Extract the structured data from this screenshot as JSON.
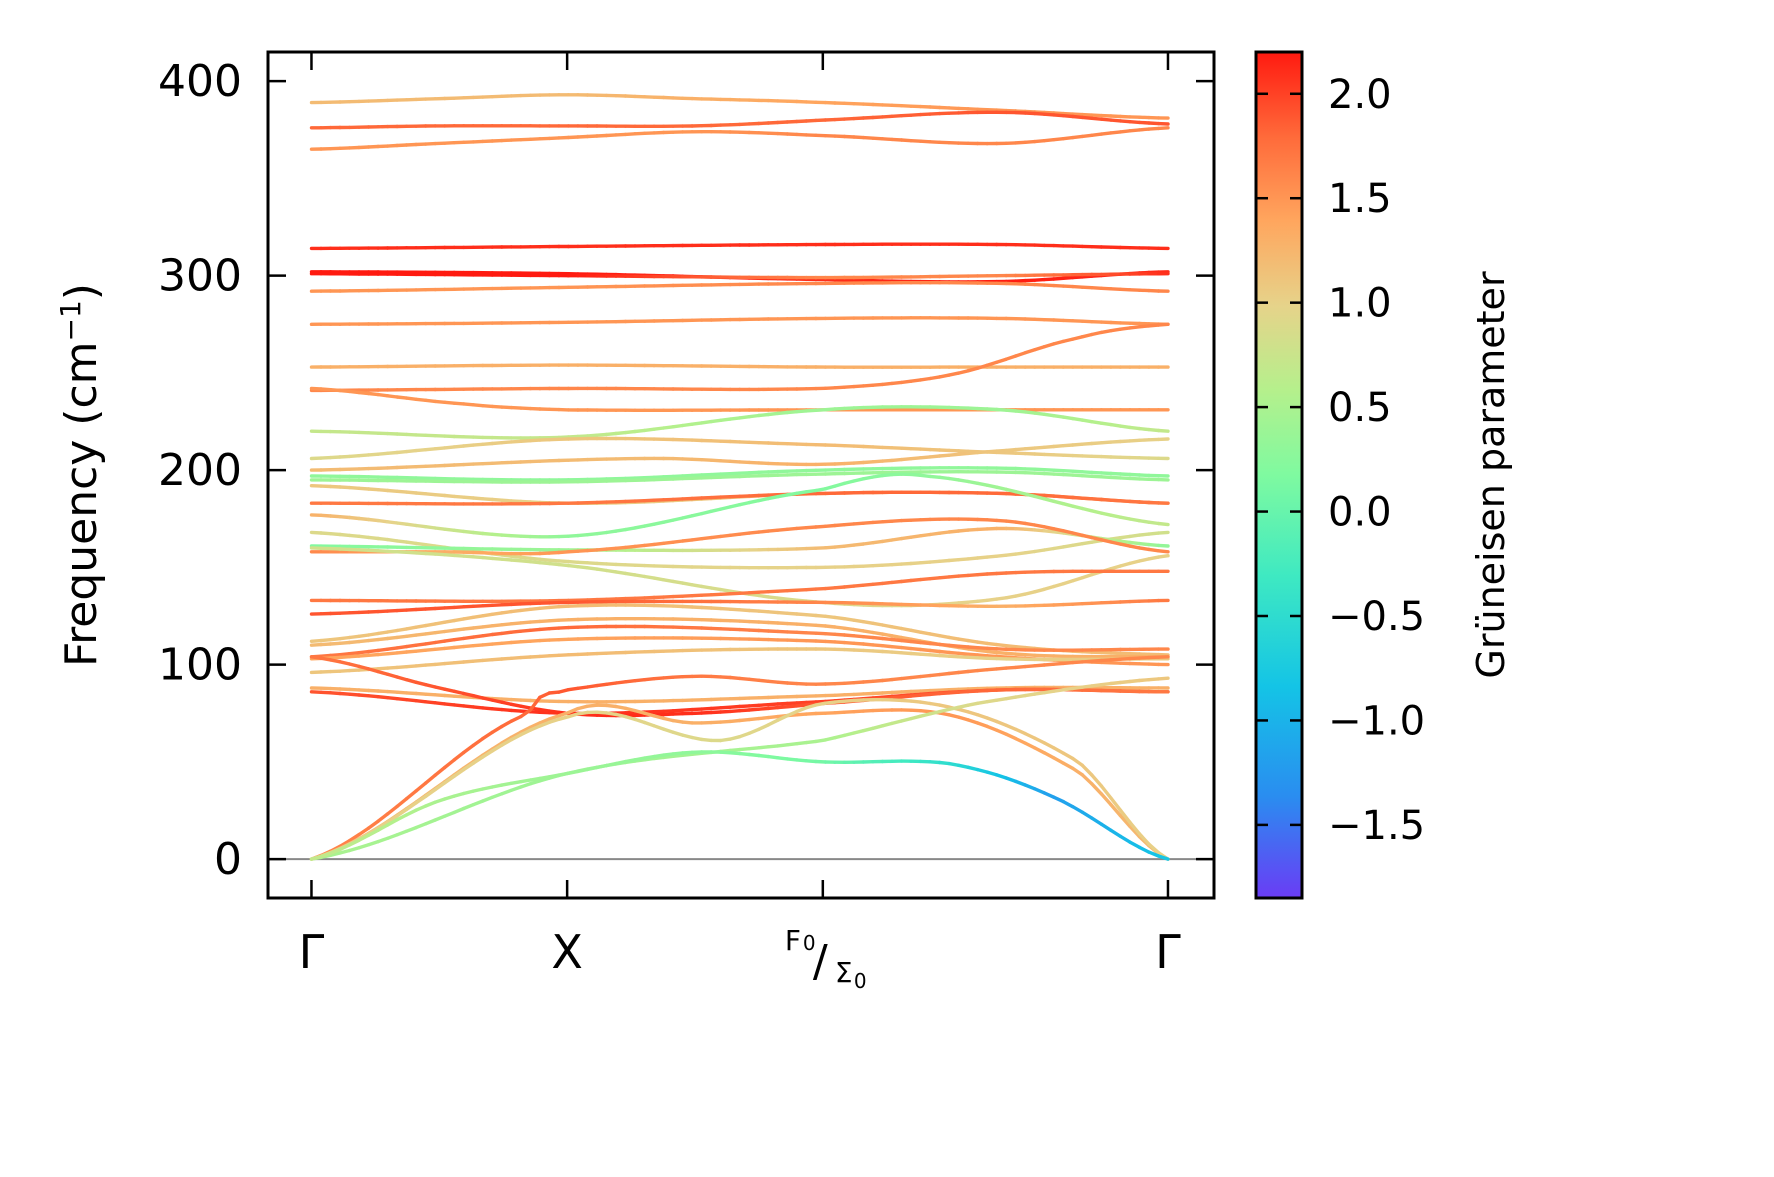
{
  "chart_data": {
    "type": "line",
    "title": "",
    "xlabel": "",
    "ylabel": "Frequency (cm",
    "ylabel_sup": "−1",
    "ylabel_end": ")",
    "ylim": [
      -20,
      415
    ],
    "yticks": [
      {
        "value": 0,
        "label": "0"
      },
      {
        "value": 100,
        "label": "100"
      },
      {
        "value": 200,
        "label": "200"
      },
      {
        "value": 300,
        "label": "300"
      },
      {
        "value": 400,
        "label": "400"
      }
    ],
    "xticks": [
      {
        "pos": 0.0,
        "label": "Γ"
      },
      {
        "pos": 1.0,
        "label": "X"
      },
      {
        "pos": 2.0,
        "label_top": "F",
        "label_top_sub": "0",
        "label_sep": "/",
        "label_bottom": "Σ",
        "label_bottom_sub": "0"
      },
      {
        "pos": 3.35,
        "label": "Γ"
      }
    ],
    "xlim": [
      -0.17,
      3.53
    ],
    "zero_line": true,
    "grid": false,
    "colorbar": {
      "label": "Grüneisen parameter",
      "min": -1.85,
      "max": 2.2,
      "ticks": [
        {
          "value": 2.0,
          "label": "2.0"
        },
        {
          "value": 1.5,
          "label": "1.5"
        },
        {
          "value": 1.0,
          "label": "1.0"
        },
        {
          "value": 0.5,
          "label": "0.5"
        },
        {
          "value": 0.0,
          "label": "0.0"
        },
        {
          "value": -0.5,
          "label": "−0.5"
        },
        {
          "value": -1.0,
          "label": "−1.0"
        },
        {
          "value": -1.5,
          "label": "−1.5"
        }
      ],
      "colormap": "rainbow"
    },
    "branches": [
      {
        "x": [
          0,
          0.5,
          1,
          1.5,
          2,
          2.7,
          3.35
        ],
        "y": [
          389,
          391,
          393,
          391,
          389,
          385,
          381
        ],
        "g": [
          1.2,
          1.2,
          1.2,
          1.3,
          1.4,
          1.5,
          1.5
        ]
      },
      {
        "x": [
          0,
          0.5,
          1,
          1.5,
          2,
          2.7,
          3.35
        ],
        "y": [
          376,
          377,
          377,
          377,
          380,
          384,
          378
        ],
        "g": [
          1.8,
          1.8,
          1.8,
          1.8,
          1.8,
          1.9,
          1.9
        ]
      },
      {
        "x": [
          0,
          0.5,
          1,
          1.5,
          2,
          2.7,
          3.35
        ],
        "y": [
          365,
          368,
          371,
          374,
          372,
          368,
          376
        ],
        "g": [
          1.5,
          1.5,
          1.5,
          1.5,
          1.6,
          1.6,
          1.6
        ]
      },
      {
        "x": [
          0,
          1,
          2,
          2.7,
          3.35
        ],
        "y": [
          314,
          315,
          316,
          316,
          314
        ],
        "g": [
          2.1,
          2.1,
          2.1,
          2.1,
          2.1
        ]
      },
      {
        "x": [
          0,
          1,
          2,
          2.7,
          3.35
        ],
        "y": [
          302,
          301,
          298,
          297,
          302
        ],
        "g": [
          2.2,
          2.2,
          2.1,
          2.2,
          2.1
        ]
      },
      {
        "x": [
          0,
          1,
          2,
          2.7,
          3.35
        ],
        "y": [
          301,
          300,
          299,
          300,
          301
        ],
        "g": [
          2.2,
          2.2,
          1.6,
          1.6,
          2.1
        ]
      },
      {
        "x": [
          0,
          1,
          2,
          2.7,
          3.35
        ],
        "y": [
          292,
          294,
          296,
          296,
          292
        ],
        "g": [
          1.5,
          1.5,
          1.6,
          1.6,
          1.6
        ]
      },
      {
        "x": [
          0,
          1,
          2,
          2.7,
          3.35
        ],
        "y": [
          275,
          276,
          278,
          278,
          275
        ],
        "g": [
          1.5,
          1.5,
          1.5,
          1.5,
          1.5
        ]
      },
      {
        "x": [
          0,
          1,
          2,
          2.7,
          3.35
        ],
        "y": [
          253,
          254,
          253,
          253,
          253
        ],
        "g": [
          1.3,
          1.3,
          1.3,
          1.3,
          1.3
        ]
      },
      {
        "x": [
          0,
          1,
          2,
          2.5,
          3.0,
          3.35
        ],
        "y": [
          241,
          242,
          242,
          249,
          268,
          275
        ],
        "g": [
          1.6,
          1.6,
          1.6,
          1.6,
          1.6,
          1.6
        ]
      },
      {
        "x": [
          0,
          0.6,
          1,
          2,
          3.35
        ],
        "y": [
          242,
          234,
          231,
          231,
          231
        ],
        "g": [
          1.5,
          1.5,
          1.5,
          1.5,
          1.5
        ]
      },
      {
        "x": [
          0,
          1,
          2,
          2.7,
          3.35
        ],
        "y": [
          220,
          217,
          231,
          231,
          220
        ],
        "g": [
          0.7,
          0.7,
          0.4,
          0.4,
          0.7
        ]
      },
      {
        "x": [
          0,
          1,
          2,
          2.7,
          3.35
        ],
        "y": [
          206,
          216,
          213,
          209,
          206
        ],
        "g": [
          0.9,
          1.1,
          1.2,
          1.1,
          0.9
        ]
      },
      {
        "x": [
          0,
          1.3,
          2,
          2.7,
          3.35
        ],
        "y": [
          200,
          206,
          203,
          210,
          216
        ],
        "g": [
          1.2,
          1.2,
          1.3,
          1.1,
          1.0
        ]
      },
      {
        "x": [
          0,
          1,
          2,
          2.7,
          3.35
        ],
        "y": [
          197,
          195,
          200,
          201,
          197
        ],
        "g": [
          0.3,
          0.3,
          0.3,
          0.3,
          0.3
        ]
      },
      {
        "x": [
          0,
          1,
          2,
          2.7,
          3.35
        ],
        "y": [
          195,
          194,
          198,
          199,
          195
        ],
        "g": [
          0.4,
          0.4,
          0.4,
          0.4,
          0.4
        ]
      },
      {
        "x": [
          0,
          1,
          2,
          2.7,
          3.35
        ],
        "y": [
          192,
          183,
          188,
          188,
          183
        ],
        "g": [
          1.1,
          1.0,
          1.2,
          1.3,
          1.3
        ]
      },
      {
        "x": [
          0,
          1,
          2,
          2.7,
          3.35
        ],
        "y": [
          183,
          183,
          188,
          188,
          183
        ],
        "g": [
          1.7,
          1.7,
          1.8,
          1.8,
          1.7
        ]
      },
      {
        "x": [
          0,
          1,
          2,
          2.4,
          3.35
        ],
        "y": [
          177,
          166,
          190,
          197,
          172
        ],
        "g": [
          1.3,
          0.3,
          0.2,
          0.3,
          0.7
        ]
      },
      {
        "x": [
          0,
          1,
          2,
          2.7,
          3.35
        ],
        "y": [
          168,
          153,
          150,
          156,
          168
        ],
        "g": [
          0.9,
          0.9,
          1.0,
          1.0,
          0.8
        ]
      },
      {
        "x": [
          0,
          1,
          2,
          2.7,
          3.35
        ],
        "y": [
          161,
          159,
          160,
          170,
          161
        ],
        "g": [
          0.2,
          0.4,
          1.2,
          1.3,
          0.3
        ]
      },
      {
        "x": [
          0,
          0.5,
          1,
          2,
          2.7,
          3.35
        ],
        "y": [
          158,
          158,
          158,
          171,
          174,
          158
        ],
        "g": [
          1.6,
          1.3,
          1.5,
          1.6,
          1.6,
          1.6
        ]
      },
      {
        "x": [
          0,
          1,
          2,
          2.7,
          3.35
        ],
        "y": [
          160,
          151,
          132,
          134,
          156
        ],
        "g": [
          0.8,
          0.8,
          0.9,
          1.0,
          1.0
        ]
      },
      {
        "x": [
          0,
          1,
          2,
          2.7,
          3.35
        ],
        "y": [
          133,
          133,
          139,
          147,
          148
        ],
        "g": [
          1.7,
          1.7,
          1.7,
          1.7,
          1.7
        ]
      },
      {
        "x": [
          0,
          1,
          2,
          2.7,
          3.35
        ],
        "y": [
          126,
          132,
          132,
          130,
          133
        ],
        "g": [
          1.9,
          1.9,
          1.6,
          1.3,
          1.7
        ]
      },
      {
        "x": [
          0,
          1,
          2,
          2.7,
          3.35
        ],
        "y": [
          112,
          130,
          125,
          110,
          105
        ],
        "g": [
          1.1,
          1.2,
          1.1,
          1.2,
          1.2
        ]
      },
      {
        "x": [
          0,
          1,
          2,
          2.7,
          3.35
        ],
        "y": [
          110,
          123,
          120,
          106,
          104
        ],
        "g": [
          1.2,
          1.3,
          1.3,
          1.3,
          1.3
        ]
      },
      {
        "x": [
          0,
          1,
          2,
          2.7,
          3.35
        ],
        "y": [
          104,
          119,
          116,
          108,
          108
        ],
        "g": [
          1.7,
          1.8,
          1.6,
          1.6,
          1.6
        ]
      },
      {
        "x": [
          0,
          1,
          2,
          2.7,
          3.35
        ],
        "y": [
          103,
          113,
          112,
          104,
          100
        ],
        "g": [
          1.4,
          1.4,
          1.5,
          1.5,
          1.5
        ]
      },
      {
        "x": [
          0,
          1,
          2,
          2.7,
          3.35
        ],
        "y": [
          96,
          105,
          108,
          103,
          103
        ],
        "g": [
          1.1,
          1.2,
          1.1,
          1.0,
          1.1
        ]
      },
      {
        "x": [
          0,
          1,
          2,
          2.7,
          3.35
        ],
        "y": [
          88,
          81,
          84,
          88,
          88
        ],
        "g": [
          1.3,
          1.3,
          1.3,
          1.3,
          1.3
        ]
      },
      {
        "x": [
          0,
          1,
          2,
          2.7,
          3.35
        ],
        "y": [
          86,
          75,
          81,
          87,
          86
        ],
        "g": [
          1.9,
          2.1,
          2.0,
          1.9,
          1.8
        ]
      },
      {
        "x": [
          0,
          0.5,
          1,
          1.5,
          2,
          2.7,
          3.35
        ],
        "y": [
          104,
          88,
          75,
          75,
          80,
          87,
          86
        ],
        "g": [
          1.7,
          1.9,
          2.1,
          2.1,
          1.9,
          1.8,
          1.7
        ]
      },
      {
        "x": [
          0,
          0.85,
          1,
          1.5,
          2,
          2.7,
          3.35
        ],
        "y": [
          0,
          75,
          87,
          94,
          90,
          98,
          104
        ],
        "g": [
          1.6,
          1.8,
          1.9,
          1.7,
          1.6,
          1.6,
          1.6
        ]
      },
      {
        "x": [
          0,
          1,
          1.5,
          2,
          2.5,
          3.0,
          3.35
        ],
        "y": [
          0,
          75,
          70,
          75,
          74,
          45,
          0
        ],
        "g": [
          1.2,
          1.3,
          1.3,
          1.4,
          1.5,
          1.3,
          1.2
        ]
      },
      {
        "x": [
          0,
          1,
          1.6,
          2,
          2.5,
          3.0,
          3.35
        ],
        "y": [
          0,
          73,
          61,
          80,
          78,
          50,
          0
        ],
        "g": [
          1.0,
          1.0,
          0.9,
          1.0,
          1.1,
          1.1,
          1.0
        ]
      },
      {
        "x": [
          0,
          1,
          2,
          2.6,
          3.35
        ],
        "y": [
          0,
          44,
          61,
          80,
          93
        ],
        "g": [
          0.5,
          0.4,
          0.5,
          0.9,
          1.1
        ]
      },
      {
        "x": [
          0,
          0.5,
          1,
          1.5,
          2,
          2.5,
          2.9,
          3.35
        ],
        "y": [
          0,
          30,
          44,
          55,
          50,
          49,
          32,
          0
        ],
        "g": [
          0.7,
          0.5,
          0.4,
          0.3,
          0.1,
          -0.5,
          -1.2,
          -0.8
        ]
      }
    ]
  }
}
